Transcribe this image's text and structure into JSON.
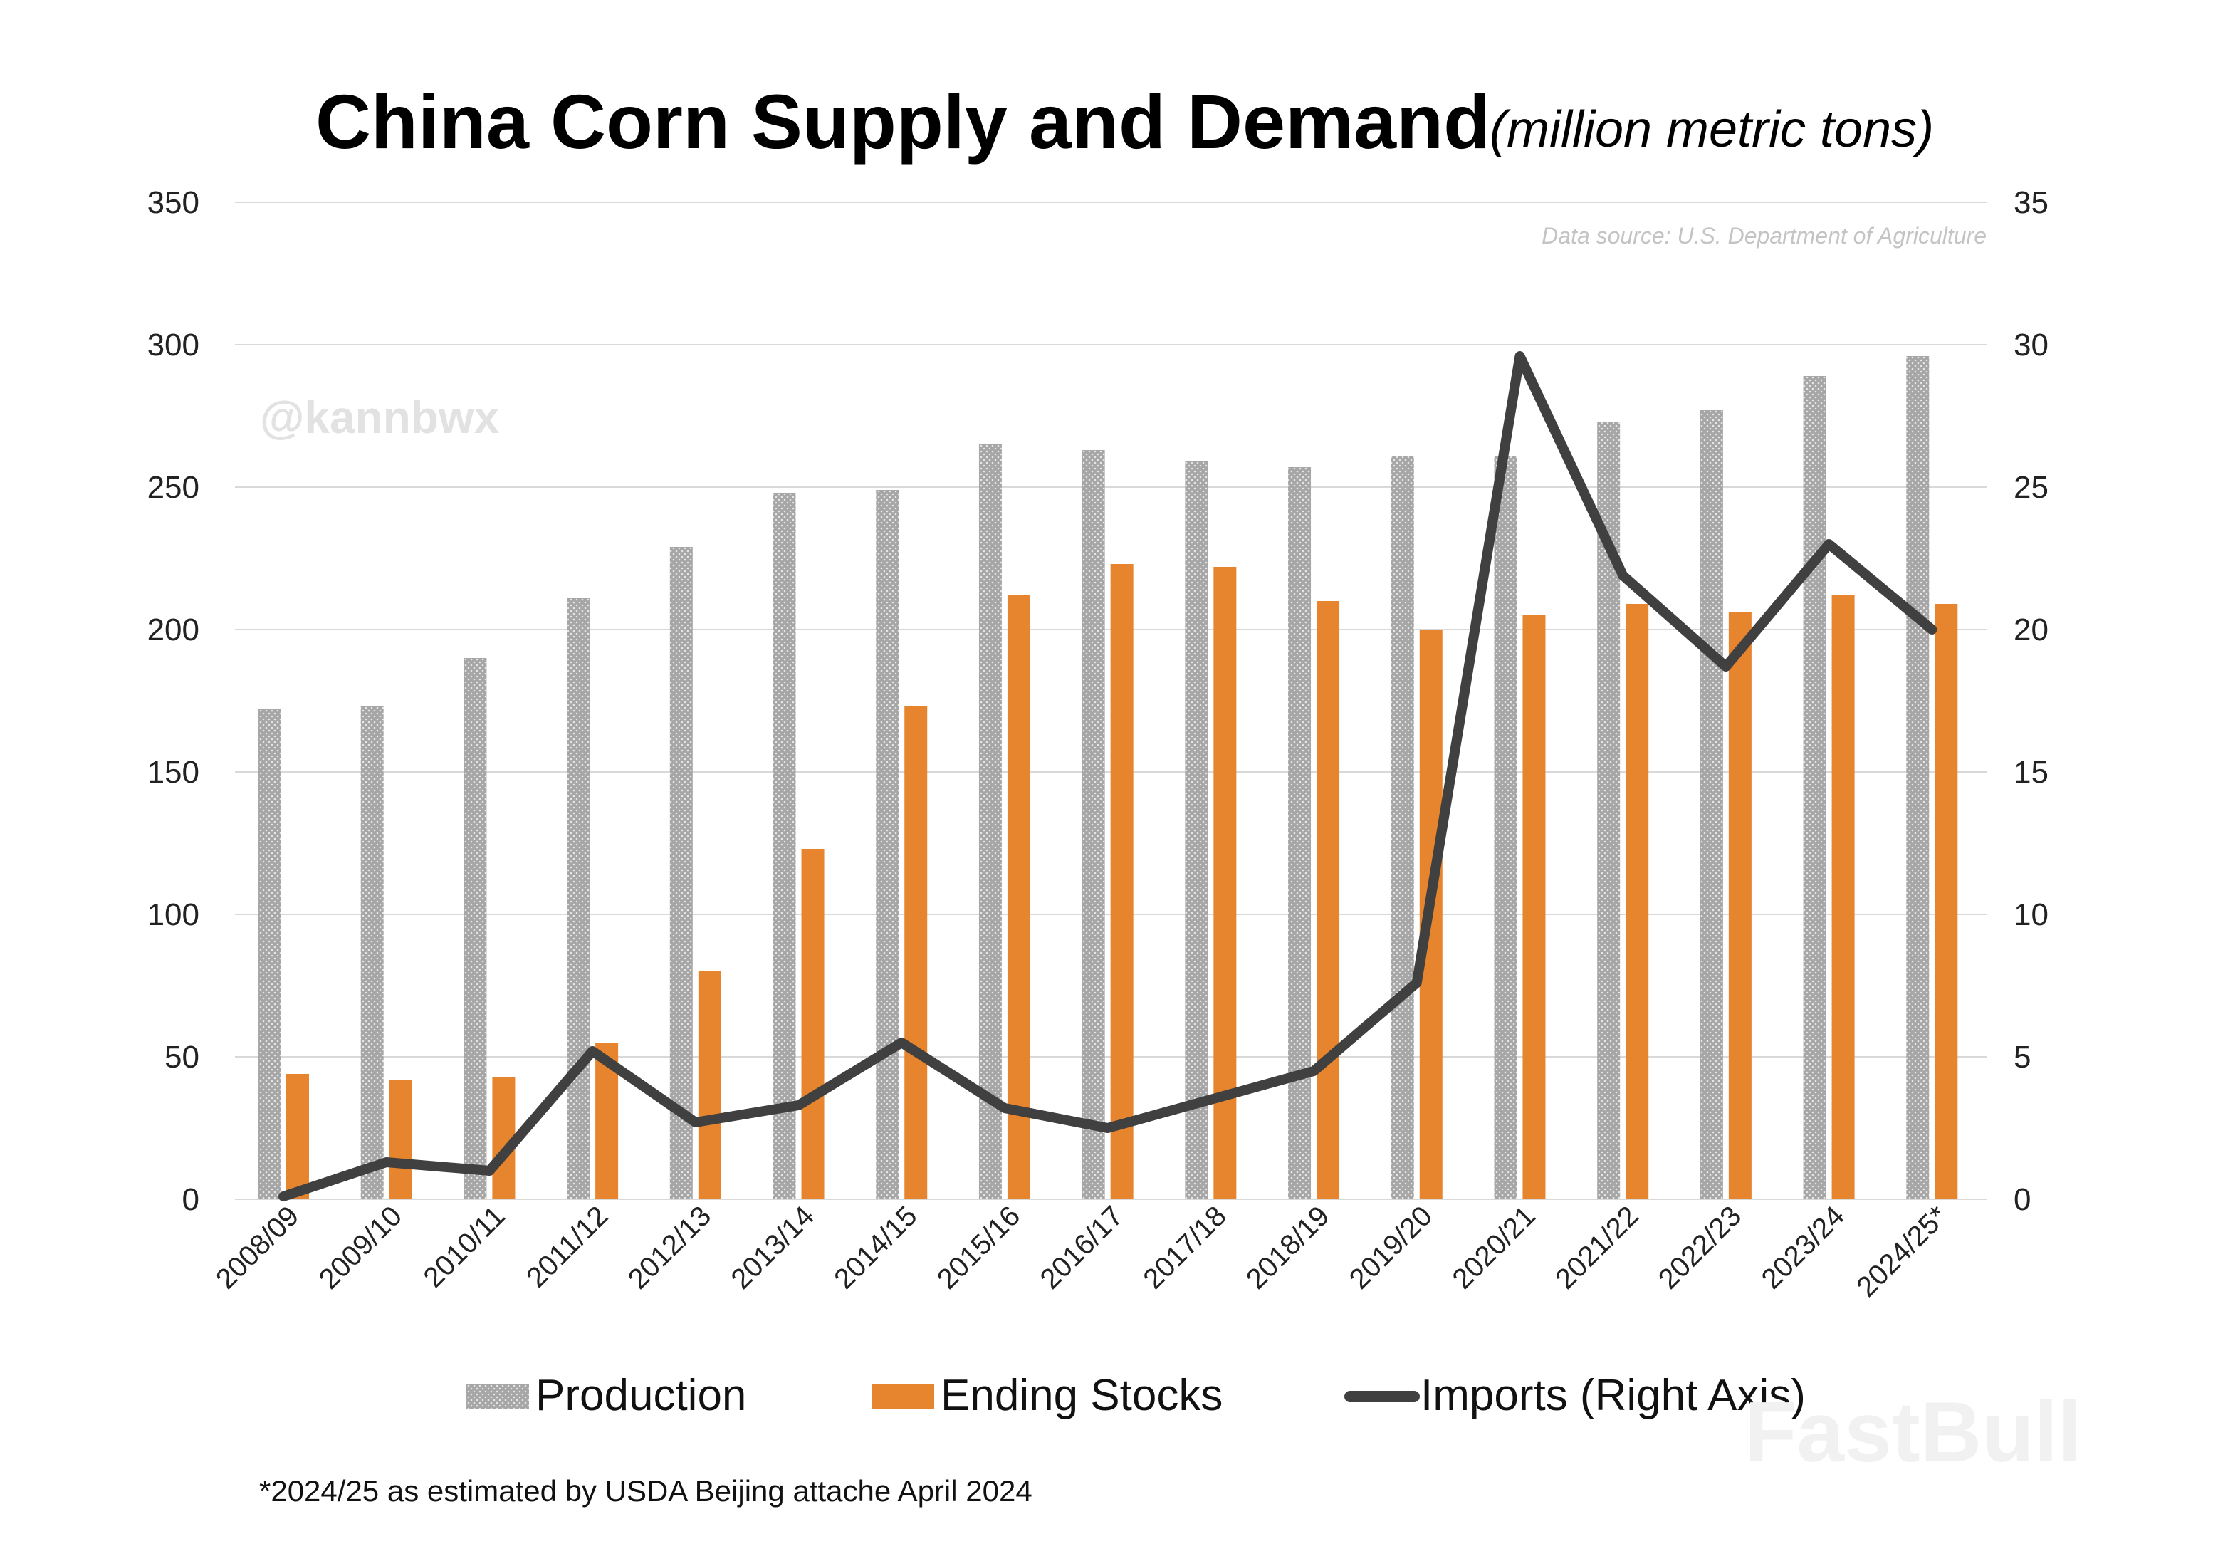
{
  "header": {
    "title": "China Corn Supply and Demand",
    "unit": "(million metric tons)"
  },
  "source_note": "Data source: U.S. Department of Agriculture",
  "watermark": "@kannbwx",
  "brand_watermark": "FastBull",
  "footnote": "*2024/25 as estimated by USDA Beijing attache April 2024",
  "colors": {
    "production": "#a6a6a6",
    "ending_stocks": "#e6852e",
    "imports": "#404040",
    "grid": "#d9d9d9"
  },
  "chart_data": {
    "type": "bar",
    "title": "China Corn Supply and Demand",
    "categories": [
      "2008/09",
      "2009/10",
      "2010/11",
      "2011/12",
      "2012/13",
      "2013/14",
      "2014/15",
      "2015/16",
      "2016/17",
      "2017/18",
      "2018/19",
      "2019/20",
      "2020/21",
      "2021/22",
      "2022/23",
      "2023/24",
      "2024/25*"
    ],
    "series": [
      {
        "name": "Production",
        "type": "bar",
        "axis": "left",
        "values": [
          172,
          173,
          190,
          211,
          229,
          248,
          249,
          265,
          263,
          259,
          257,
          261,
          261,
          273,
          277,
          289,
          296
        ]
      },
      {
        "name": "Ending Stocks",
        "type": "bar",
        "axis": "left",
        "values": [
          44,
          42,
          43,
          55,
          80,
          123,
          173,
          212,
          223,
          222,
          210,
          200,
          205,
          209,
          206,
          212,
          209
        ]
      },
      {
        "name": "Imports (Right Axis)",
        "type": "line",
        "axis": "right",
        "values": [
          0.1,
          1.3,
          1.0,
          5.2,
          2.7,
          3.3,
          5.5,
          3.2,
          2.5,
          3.5,
          4.5,
          7.6,
          29.6,
          21.9,
          18.7,
          23.0,
          20.0
        ]
      }
    ],
    "left_axis": {
      "ylim": [
        0,
        350
      ],
      "ticks": [
        "0",
        "50",
        "100",
        "150",
        "200",
        "250",
        "300",
        "350"
      ]
    },
    "right_axis": {
      "ylim": [
        0,
        35
      ],
      "ticks": [
        "0",
        "5",
        "10",
        "15",
        "20",
        "25",
        "30",
        "35"
      ]
    },
    "grid": true,
    "legend_placement": "bottom"
  }
}
